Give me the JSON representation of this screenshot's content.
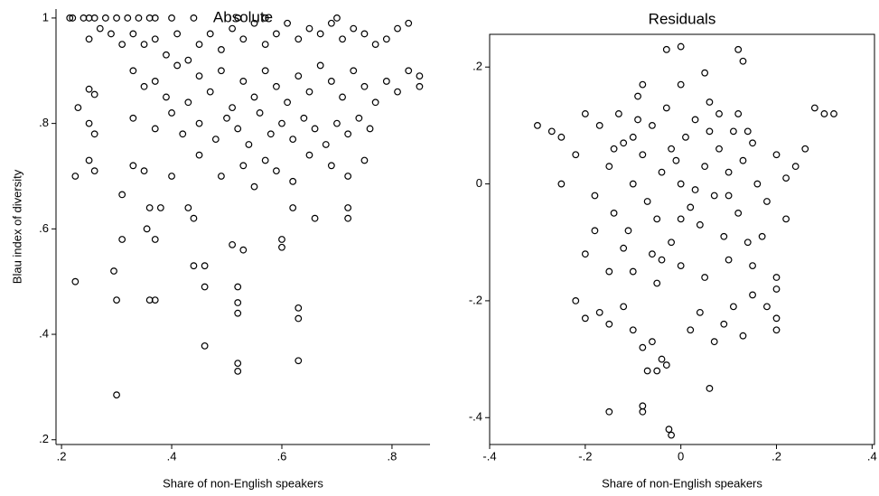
{
  "chart_data": [
    {
      "type": "scatter",
      "title": "Absolute",
      "x_label": "Share of non-English speakers",
      "y_label": "Blau index of diversity",
      "color": "#000000",
      "frame": false,
      "xlim": [
        0.19,
        0.869
      ],
      "ylim": [
        0.191,
        1.017
      ],
      "xticks": [
        {
          "value": 0.2,
          "label": ".2"
        },
        {
          "value": 0.4,
          "label": ".4"
        },
        {
          "value": 0.6,
          "label": ".6"
        },
        {
          "value": 0.8,
          "label": ".8"
        }
      ],
      "yticks": [
        {
          "value": 0.2,
          "label": ".2"
        },
        {
          "value": 0.4,
          "label": ".4"
        },
        {
          "value": 0.6,
          "label": ".6"
        },
        {
          "value": 0.8,
          "label": ".8"
        },
        1
      ],
      "x": [
        0.215,
        0.22,
        0.24,
        0.25,
        0.26,
        0.28,
        0.3,
        0.32,
        0.34,
        0.36,
        0.37,
        0.4,
        0.44,
        0.52,
        0.57,
        0.7,
        0.25,
        0.27,
        0.29,
        0.31,
        0.33,
        0.35,
        0.37,
        0.39,
        0.41,
        0.43,
        0.45,
        0.47,
        0.49,
        0.51,
        0.53,
        0.55,
        0.57,
        0.59,
        0.61,
        0.63,
        0.65,
        0.67,
        0.69,
        0.71,
        0.73,
        0.75,
        0.77,
        0.79,
        0.81,
        0.83,
        0.85,
        0.85,
        0.33,
        0.35,
        0.37,
        0.39,
        0.41,
        0.43,
        0.45,
        0.47,
        0.49,
        0.51,
        0.53,
        0.55,
        0.57,
        0.59,
        0.61,
        0.63,
        0.65,
        0.67,
        0.69,
        0.71,
        0.73,
        0.75,
        0.77,
        0.79,
        0.81,
        0.83,
        0.33,
        0.37,
        0.4,
        0.42,
        0.45,
        0.48,
        0.5,
        0.52,
        0.54,
        0.56,
        0.58,
        0.6,
        0.62,
        0.64,
        0.66,
        0.68,
        0.7,
        0.72,
        0.74,
        0.76,
        0.45,
        0.49,
        0.53,
        0.55,
        0.57,
        0.59,
        0.62,
        0.65,
        0.69,
        0.72,
        0.75,
        0.33,
        0.35,
        0.4,
        0.3,
        0.225,
        0.3,
        0.37,
        0.36,
        0.46,
        0.52,
        0.52,
        0.63,
        0.63,
        0.63,
        0.52,
        0.52,
        0.52,
        0.44,
        0.46,
        0.46,
        0.295,
        0.31,
        0.37,
        0.355,
        0.31,
        0.38,
        0.36,
        0.43,
        0.44,
        0.51,
        0.53,
        0.6,
        0.6,
        0.62,
        0.66,
        0.72,
        0.72,
        0.225,
        0.25,
        0.26,
        0.25,
        0.26,
        0.23,
        0.25,
        0.26
      ],
      "y": [
        1,
        1,
        1,
        1,
        1,
        1,
        1,
        1,
        1,
        1,
        1,
        1,
        1,
        1,
        1,
        1,
        0.96,
        0.98,
        0.97,
        0.95,
        0.97,
        0.95,
        0.96,
        0.93,
        0.97,
        0.92,
        0.95,
        0.97,
        0.94,
        0.98,
        0.96,
        0.99,
        0.95,
        0.97,
        0.99,
        0.96,
        0.98,
        0.97,
        0.99,
        0.96,
        0.98,
        0.97,
        0.95,
        0.96,
        0.98,
        0.99,
        0.89,
        0.87,
        0.9,
        0.87,
        0.88,
        0.85,
        0.91,
        0.84,
        0.89,
        0.86,
        0.9,
        0.83,
        0.88,
        0.85,
        0.9,
        0.87,
        0.84,
        0.89,
        0.86,
        0.91,
        0.88,
        0.85,
        0.9,
        0.87,
        0.84,
        0.88,
        0.86,
        0.9,
        0.81,
        0.79,
        0.82,
        0.78,
        0.8,
        0.77,
        0.81,
        0.79,
        0.76,
        0.82,
        0.78,
        0.8,
        0.77,
        0.81,
        0.79,
        0.76,
        0.8,
        0.78,
        0.81,
        0.79,
        0.74,
        0.7,
        0.72,
        0.68,
        0.73,
        0.71,
        0.69,
        0.74,
        0.72,
        0.7,
        0.73,
        0.72,
        0.71,
        0.7,
        0.285,
        0.5,
        0.465,
        0.465,
        0.465,
        0.378,
        0.345,
        0.33,
        0.35,
        0.43,
        0.45,
        0.44,
        0.46,
        0.49,
        0.53,
        0.53,
        0.49,
        0.52,
        0.58,
        0.58,
        0.6,
        0.665,
        0.64,
        0.64,
        0.64,
        0.62,
        0.57,
        0.56,
        0.58,
        0.565,
        0.64,
        0.62,
        0.62,
        0.64,
        0.7,
        0.73,
        0.71,
        0.8,
        0.78,
        0.83,
        0.865,
        0.855
      ]
    },
    {
      "type": "scatter",
      "title": "Residuals",
      "x_label": "Share of non-English speakers",
      "color": "#000000",
      "frame": true,
      "xlim": [
        -0.4,
        0.405
      ],
      "ylim": [
        -0.446,
        0.256
      ],
      "xticks": [
        {
          "value": -0.4,
          "label": "-.4"
        },
        {
          "value": -0.2,
          "label": "-.2"
        },
        0,
        {
          "value": 0.2,
          "label": ".2"
        },
        {
          "value": 0.4,
          "label": ".4"
        }
      ],
      "yticks": [
        {
          "value": -0.4,
          "label": "-.4"
        },
        {
          "value": -0.2,
          "label": "-.2"
        },
        0,
        {
          "value": 0.2,
          "label": ".2"
        }
      ],
      "x": [
        -0.3,
        -0.27,
        -0.25,
        -0.22,
        -0.2,
        -0.18,
        -0.17,
        -0.15,
        -0.14,
        -0.13,
        -0.12,
        -0.11,
        -0.1,
        -0.09,
        -0.08,
        -0.07,
        -0.06,
        -0.05,
        -0.04,
        -0.03,
        -0.02,
        -0.01,
        0,
        0.01,
        0.02,
        0.03,
        0.04,
        0.05,
        0.06,
        0.07,
        0.08,
        0.09,
        0.1,
        0.11,
        0.12,
        0.13,
        0.14,
        0.15,
        0.16,
        0.18,
        0.2,
        0.22,
        0.24,
        0.26,
        0.28,
        0.3,
        0.32,
        -0.03,
        0,
        0.12,
        0.13,
        0.05,
        -0.08,
        -0.2,
        -0.22,
        -0.2,
        -0.17,
        -0.15,
        -0.12,
        -0.1,
        -0.08,
        -0.06,
        -0.04,
        -0.05,
        -0.03,
        -0.07,
        -0.08,
        -0.08,
        -0.02,
        -0.025,
        -0.15,
        0.06,
        0.02,
        0.04,
        0.07,
        0.09,
        0.11,
        0.13,
        0.15,
        0.2,
        0.2,
        0.2,
        0.2,
        0.18,
        -0.1,
        -0.05,
        0,
        0.05,
        0.1,
        0.15,
        -0.15,
        -0.12,
        -0.18,
        0.17,
        0.22,
        -0.25,
        -0.1,
        -0.06,
        0,
        0.08,
        0.1,
        -0.02,
        0.03,
        0.06,
        -0.09,
        0.12,
        -0.14,
        0.14,
        0,
        -0.04
      ],
      "y": [
        0.1,
        0.09,
        0.08,
        0.05,
        0.12,
        -0.02,
        0.1,
        0.03,
        -0.05,
        0.12,
        0.07,
        -0.08,
        0,
        0.15,
        0.05,
        -0.03,
        0.1,
        -0.06,
        0.02,
        0.13,
        -0.1,
        0.04,
        0,
        0.08,
        -0.04,
        0.11,
        -0.07,
        0.03,
        0.14,
        -0.02,
        0.06,
        -0.09,
        0.02,
        0.09,
        -0.05,
        0.04,
        -0.1,
        0.07,
        0,
        -0.03,
        0.05,
        0.01,
        0.03,
        0.06,
        0.13,
        0.12,
        0.12,
        0.23,
        0.235,
        0.23,
        0.21,
        0.19,
        0.17,
        -0.12,
        -0.2,
        -0.23,
        -0.22,
        -0.24,
        -0.21,
        -0.25,
        -0.28,
        -0.27,
        -0.3,
        -0.32,
        -0.31,
        -0.32,
        -0.38,
        -0.39,
        -0.43,
        -0.42,
        -0.39,
        -0.35,
        -0.25,
        -0.22,
        -0.27,
        -0.24,
        -0.21,
        -0.26,
        -0.19,
        -0.25,
        -0.23,
        -0.18,
        -0.16,
        -0.21,
        -0.15,
        -0.17,
        -0.14,
        -0.16,
        -0.13,
        -0.14,
        -0.15,
        -0.11,
        -0.08,
        -0.09,
        -0.06,
        0,
        0.08,
        -0.12,
        0.17,
        0.12,
        -0.02,
        0.06,
        -0.01,
        0.09,
        0.11,
        0.12,
        0.06,
        0.09,
        -0.06,
        -0.13
      ]
    }
  ]
}
